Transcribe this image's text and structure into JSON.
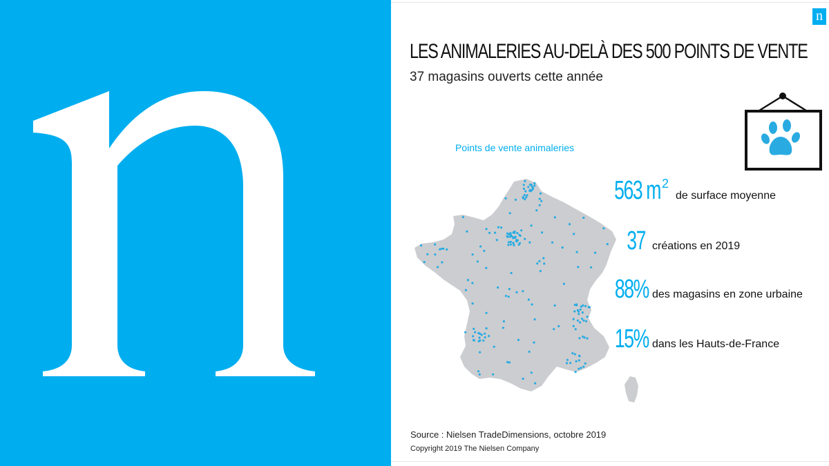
{
  "logo": {
    "letter": "n",
    "brand_color": "#00AEEF"
  },
  "header": {
    "mini_logo": "n",
    "title": "LES ANIMALERIES AU-DELÀ DES 500 POINTS DE VENTE",
    "subtitle": "37 magasins ouverts cette année"
  },
  "map": {
    "label": "Points de vente animaleries",
    "dot_color": "#29ABE2",
    "land_color": "#CCCDD0"
  },
  "sign_icon": "paw-sign-icon",
  "stats": [
    {
      "value": "563 m",
      "sup": "2",
      "text": "de surface moyenne"
    },
    {
      "value": "37",
      "sup": "",
      "text": "créations en  2019"
    },
    {
      "value": "88%",
      "sup": "",
      "text": "des magasins en zone urbaine"
    },
    {
      "value": "15%",
      "sup": "",
      "text": "dans les Hauts-de-France"
    }
  ],
  "footer": {
    "source": "Source : Nielsen TradeDimensions, octobre 2019",
    "copyright": "Copyright 2019 The Nielsen Company"
  }
}
